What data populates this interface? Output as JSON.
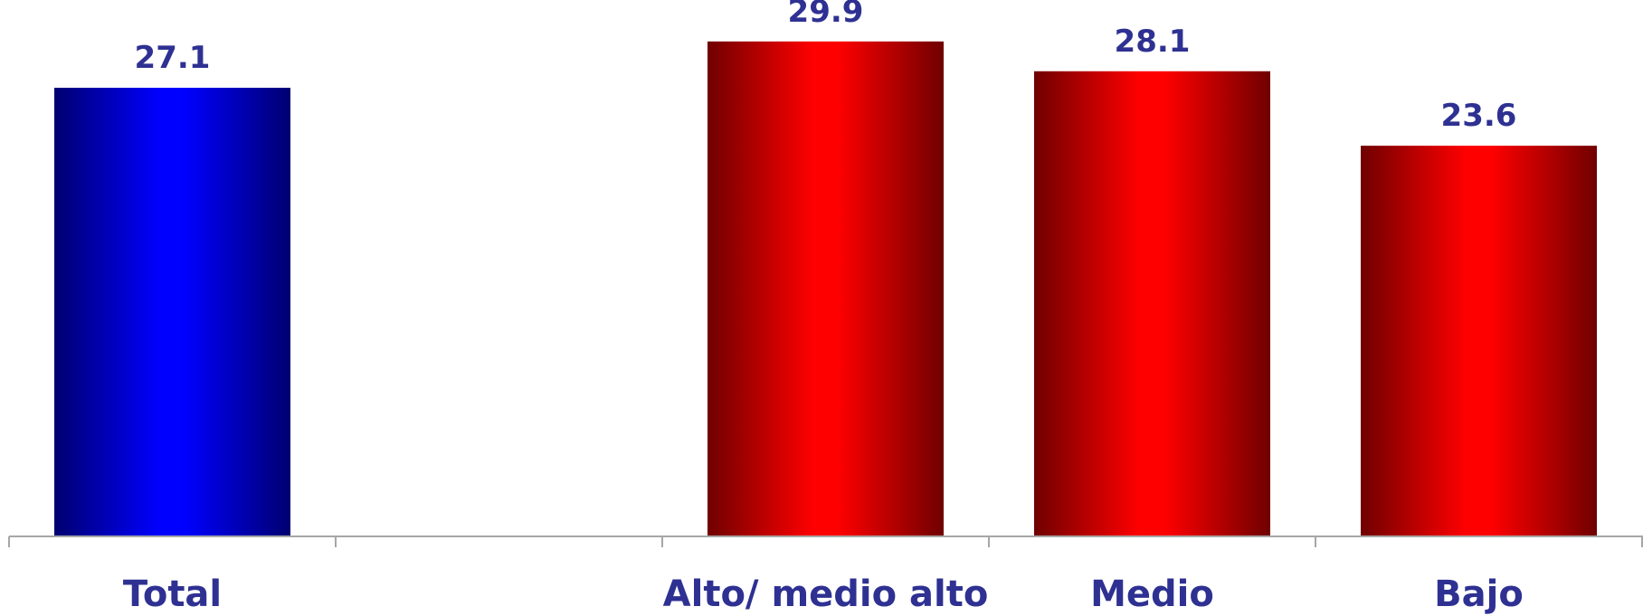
{
  "chart_data": {
    "type": "bar",
    "categories": [
      "Total",
      "",
      "Alto/ medio alto",
      "Medio",
      "Bajo"
    ],
    "values": [
      27.1,
      null,
      29.9,
      28.1,
      23.6
    ],
    "value_labels": [
      "27.1",
      "",
      "29.9",
      "28.1",
      "23.6"
    ],
    "title": "",
    "xlabel": "",
    "ylabel": "",
    "ylim": [
      0,
      30
    ],
    "grid": false,
    "legend": "none",
    "bar_colors": [
      "#0000ff",
      null,
      "#ff0000",
      "#ff0000",
      "#ff0000"
    ],
    "bar_edge_colors": [
      "#000070",
      null,
      "#700000",
      "#700000",
      "#700000"
    ],
    "label_color": "#2e3192",
    "axis_color": "#a6a6a6"
  }
}
